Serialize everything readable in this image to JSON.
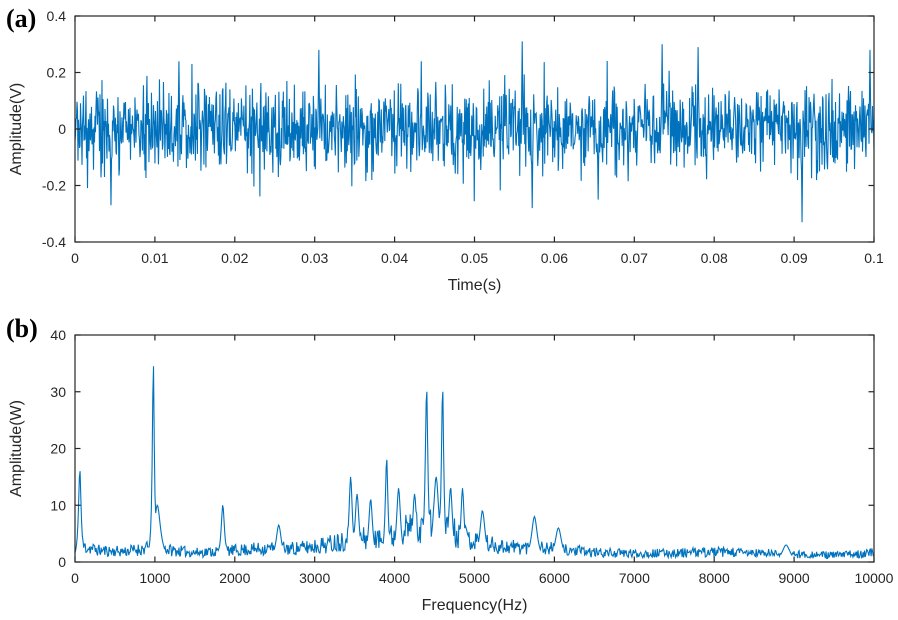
{
  "figure": {
    "background": "#ffffff",
    "axis_color": "#262626",
    "panels": [
      {
        "label": "(a)"
      },
      {
        "label": "(b)"
      }
    ]
  },
  "chart_data": [
    {
      "panel": "(a)",
      "type": "line",
      "title": "",
      "xlabel": "Time(s)",
      "ylabel": "Amplitude(V)",
      "xlim": [
        0,
        0.1
      ],
      "ylim": [
        -0.4,
        0.4
      ],
      "xticks": [
        0,
        0.01,
        0.02,
        0.03,
        0.04,
        0.05,
        0.06,
        0.07,
        0.08,
        0.09,
        0.1
      ],
      "xtick_labels": [
        "0",
        "0.01",
        "0.02",
        "0.03",
        "0.04",
        "0.05",
        "0.06",
        "0.07",
        "0.08",
        "0.09",
        "0.1"
      ],
      "yticks": [
        -0.4,
        -0.2,
        0,
        0.2,
        0.4
      ],
      "ytick_labels": [
        "-0.4",
        "-0.2",
        "0",
        "0.2",
        "0.4"
      ],
      "grid": false,
      "legend": null,
      "line_color": "#0072BD",
      "series_description": "Broadband zero-mean measured signal; dense oscillation band roughly ±0.15 V with occasional excursions to about +0.31 V and -0.33 V",
      "signal": {
        "kind": "time-noise",
        "n_points": 1600,
        "mean": 0,
        "std": 0.075,
        "soft_clip": 0.27,
        "seed": 20,
        "notable_extrema": [
          {
            "t": 0.0045,
            "v": -0.27
          },
          {
            "t": 0.013,
            "v": 0.24
          },
          {
            "t": 0.0305,
            "v": 0.28
          },
          {
            "t": 0.056,
            "v": 0.31
          },
          {
            "t": 0.0572,
            "v": -0.28
          },
          {
            "t": 0.0655,
            "v": -0.25
          },
          {
            "t": 0.0735,
            "v": 0.3
          },
          {
            "t": 0.078,
            "v": 0.29
          },
          {
            "t": 0.091,
            "v": -0.33
          },
          {
            "t": 0.0995,
            "v": 0.28
          }
        ]
      }
    },
    {
      "panel": "(b)",
      "type": "line",
      "title": "",
      "xlabel": "Frequency(Hz)",
      "ylabel": "Amplitude(W)",
      "xlim": [
        0,
        10000
      ],
      "ylim": [
        0,
        40
      ],
      "xticks": [
        0,
        1000,
        2000,
        3000,
        4000,
        5000,
        6000,
        7000,
        8000,
        9000,
        10000
      ],
      "xtick_labels": [
        "0",
        "1000",
        "2000",
        "3000",
        "4000",
        "5000",
        "6000",
        "7000",
        "8000",
        "9000",
        "10000"
      ],
      "yticks": [
        0,
        10,
        20,
        30,
        40
      ],
      "ytick_labels": [
        "0",
        "10",
        "20",
        "30",
        "40"
      ],
      "grid": false,
      "legend": null,
      "line_color": "#0072BD",
      "series_description": "Power spectrum: noisy baseline 1-3 W decaying toward 10 kHz, elevated broadband hump 3000-5200 Hz, sharp peaks listed in peaks[]",
      "peaks": [
        {
          "freq": 60,
          "amp": 16,
          "width": 20
        },
        {
          "freq": 980,
          "amp": 34.5,
          "width": 15
        },
        {
          "freq": 1030,
          "amp": 10,
          "width": 50
        },
        {
          "freq": 1850,
          "amp": 10,
          "width": 25
        },
        {
          "freq": 2550,
          "amp": 6.5,
          "width": 40
        },
        {
          "freq": 3450,
          "amp": 15,
          "width": 25
        },
        {
          "freq": 3530,
          "amp": 12,
          "width": 30
        },
        {
          "freq": 3700,
          "amp": 11,
          "width": 30
        },
        {
          "freq": 3900,
          "amp": 18,
          "width": 20
        },
        {
          "freq": 4050,
          "amp": 13,
          "width": 30
        },
        {
          "freq": 4250,
          "amp": 12,
          "width": 30
        },
        {
          "freq": 4400,
          "amp": 30,
          "width": 20
        },
        {
          "freq": 4520,
          "amp": 15,
          "width": 40
        },
        {
          "freq": 4600,
          "amp": 30,
          "width": 18
        },
        {
          "freq": 4700,
          "amp": 13,
          "width": 30
        },
        {
          "freq": 4850,
          "amp": 13,
          "width": 25
        },
        {
          "freq": 5100,
          "amp": 9,
          "width": 40
        },
        {
          "freq": 5750,
          "amp": 8,
          "width": 45
        },
        {
          "freq": 6050,
          "amp": 6,
          "width": 50
        },
        {
          "freq": 8900,
          "amp": 3,
          "width": 60
        }
      ],
      "baseline_envelope": [
        [
          0,
          1.0
        ],
        [
          100,
          3.0
        ],
        [
          300,
          2.2
        ],
        [
          600,
          2.0
        ],
        [
          900,
          2.6
        ],
        [
          1100,
          2.4
        ],
        [
          1500,
          1.8
        ],
        [
          2000,
          2.2
        ],
        [
          2400,
          2.6
        ],
        [
          2800,
          2.6
        ],
        [
          3000,
          3.0
        ],
        [
          3200,
          3.5
        ],
        [
          3400,
          4.5
        ],
        [
          3600,
          4.5
        ],
        [
          3800,
          4.2
        ],
        [
          4000,
          5.0
        ],
        [
          4200,
          6.5
        ],
        [
          4400,
          7.0
        ],
        [
          4700,
          6.0
        ],
        [
          5000,
          4.0
        ],
        [
          5300,
          3.0
        ],
        [
          5600,
          2.8
        ],
        [
          5900,
          2.6
        ],
        [
          6200,
          2.2
        ],
        [
          6500,
          1.8
        ],
        [
          7000,
          1.6
        ],
        [
          7500,
          1.7
        ],
        [
          8000,
          1.9
        ],
        [
          8500,
          1.7
        ],
        [
          9000,
          1.5
        ],
        [
          9500,
          1.3
        ],
        [
          10000,
          1.8
        ]
      ],
      "signal": {
        "kind": "spectrum",
        "n_points": 1100,
        "seed": 11,
        "noise_min_factor": 0.45,
        "noise_span_factor": 0.95,
        "floor": 0.2
      }
    }
  ]
}
